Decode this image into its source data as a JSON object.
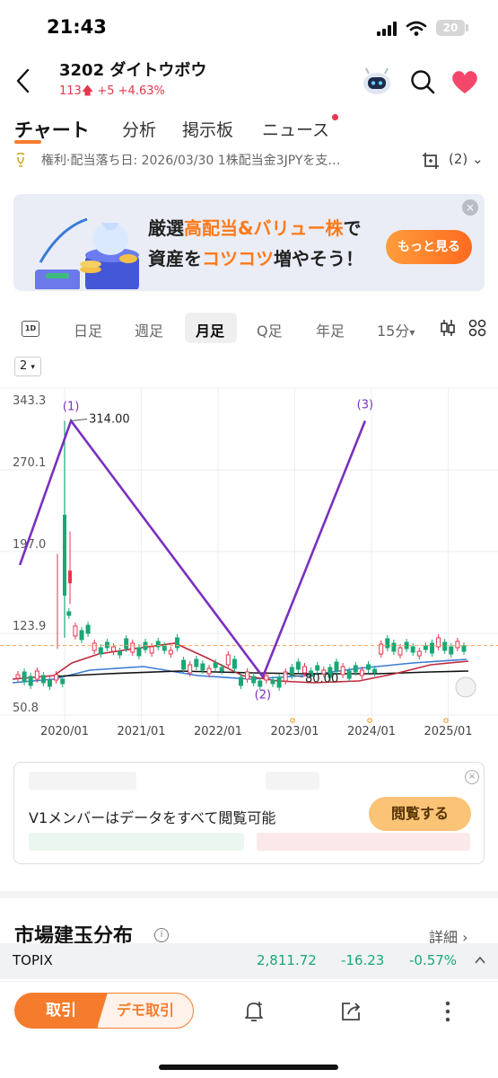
{
  "status_bar": {
    "time": "21:43",
    "battery": "20"
  },
  "header": {
    "title": "3202 ダイトウボウ",
    "price": "113",
    "change": "+5",
    "change_pct": "+4.63%"
  },
  "tabs": [
    {
      "label": "チャート",
      "active": true
    },
    {
      "label": "分析"
    },
    {
      "label": "掲示板"
    },
    {
      "label": "ニュース"
    }
  ],
  "dividend_line": {
    "text": "権利·配当落ち日: 2026/03/30 1株配当金3JPYを支…",
    "layer_count": "(2)"
  },
  "banner": {
    "line1_a": "厳選",
    "line1_hl": "高配当&バリュー株",
    "line1_b": "で",
    "line2_a": "資産を",
    "line2_hl": "コツコツ",
    "line2_b": "増やそう！",
    "button": "もっと見る",
    "close": "×"
  },
  "periods": {
    "icon": "1D",
    "items": [
      "日足",
      "週足",
      "月足",
      "Q足",
      "年足",
      "15分"
    ],
    "active": "月足",
    "caret": "▾"
  },
  "indicator_selector": "2",
  "chart_data": {
    "type": "candlestick",
    "y_ticks": [
      "343.3",
      "270.1",
      "197.0",
      "123.9",
      "50.8"
    ],
    "ylim": [
      50.8,
      343.3
    ],
    "x_ticks": [
      "2020/01",
      "2021/01",
      "2022/01",
      "2023/01",
      "2024/01",
      "2025/01"
    ],
    "current_price_line": 113,
    "annotations": {
      "high_label": "314.00",
      "low_label": "80.00",
      "wave_labels": [
        "(1)",
        "(2)",
        "(3)"
      ]
    },
    "wave_points": [
      {
        "x": "2019/06",
        "y": 185
      },
      {
        "x": "2020/02",
        "y": 314
      },
      {
        "x": "2022/08",
        "y": 85
      },
      {
        "x": "2023/12",
        "y": 314
      }
    ],
    "colors": {
      "up": "#1aa776",
      "down": "#e5364d",
      "wave": "#7b2fbf",
      "ma_short": "#c0283c",
      "ma_mid": "#3a7bd5",
      "ma_long": "#111111",
      "price_line": "#f5a25d"
    }
  },
  "bid_ask": {
    "message": "V1メンバーはデータをすべて閲覧可能",
    "button": "閲覧する",
    "close": "×"
  },
  "market_section": {
    "title": "市場建玉分布",
    "info": "i",
    "detail": "詳細"
  },
  "ticker": {
    "name": "TOPIX",
    "value": "2,811.72",
    "change": "-16.23",
    "change_pct": "-0.57%"
  },
  "bottom_bar": {
    "trade": "取引",
    "demo": "デモ取引"
  }
}
